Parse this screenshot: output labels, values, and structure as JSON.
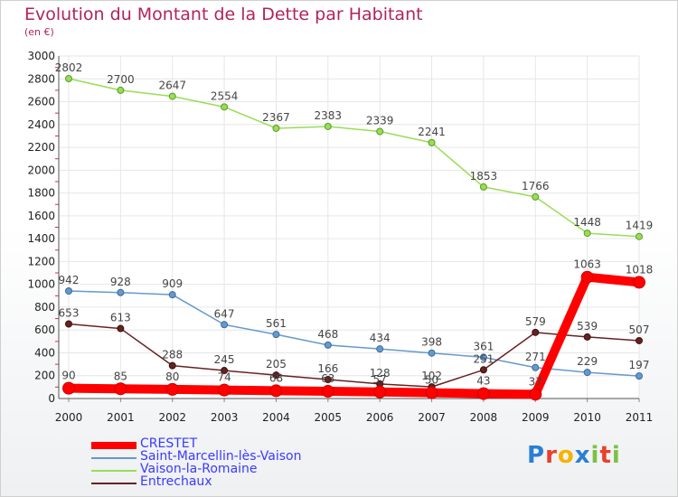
{
  "chart_data": {
    "type": "line",
    "title": "Evolution du Montant de la Dette par Habitant",
    "subtitle": "(en €)",
    "categories": [
      "2000",
      "2001",
      "2002",
      "2003",
      "2004",
      "2005",
      "2006",
      "2007",
      "2008",
      "2009",
      "2010",
      "2011"
    ],
    "ylim": [
      0,
      3000
    ],
    "yticks": [
      0,
      200,
      400,
      600,
      800,
      1000,
      1200,
      1400,
      1600,
      1800,
      2000,
      2200,
      2400,
      2600,
      2800,
      3000
    ],
    "grid": true,
    "legend_position": "bottom-left",
    "series": [
      {
        "name": "CRESTET",
        "color": "#ff0000",
        "values": [
          90,
          85,
          80,
          74,
          68,
          63,
          57,
          50,
          43,
          37,
          1063,
          1018
        ]
      },
      {
        "name": "Saint-Marcellin-lès-Vaison",
        "color": "#6699cc",
        "values": [
          942,
          928,
          909,
          647,
          561,
          468,
          434,
          398,
          361,
          271,
          229,
          197
        ]
      },
      {
        "name": "Vaison-la-Romaine",
        "color": "#99dd55",
        "values": [
          2802,
          2700,
          2647,
          2554,
          2367,
          2383,
          2339,
          2241,
          1853,
          1766,
          1448,
          1419
        ]
      },
      {
        "name": "Entrechaux",
        "color": "#662222",
        "values": [
          653,
          613,
          288,
          245,
          205,
          166,
          128,
          102,
          251,
          579,
          539,
          507
        ]
      }
    ],
    "value_labels": {
      "CRESTET": [
        "90",
        "85",
        "80",
        "74",
        "68",
        "63",
        "57",
        "50",
        "43",
        "37",
        "1063",
        "1018"
      ],
      "Saint-Marcellin-lès-Vaison": [
        "942",
        "928",
        "909",
        "647",
        "561",
        "468",
        "434",
        "398",
        "361",
        "271",
        "229",
        "197"
      ],
      "Vaison-la-Romaine": [
        "2802",
        "2700",
        "2647",
        "2554",
        "2367",
        "2383",
        "2339",
        "2241",
        "1853",
        "1766",
        "1448",
        "1419"
      ],
      "Entrechaux": [
        "653",
        "613",
        "288",
        "245",
        "205",
        "166",
        "128",
        "102",
        "251",
        "579",
        "539",
        "507"
      ]
    }
  },
  "logo": {
    "text": "Proxiti",
    "letters": [
      "P",
      "r",
      "o",
      "x",
      "i",
      "t",
      "i"
    ],
    "colors": [
      "#2a7fd4",
      "#e8402a",
      "#f4b400",
      "#2a7fd4",
      "#7cc242",
      "#e8402a",
      "#7cc242"
    ]
  }
}
